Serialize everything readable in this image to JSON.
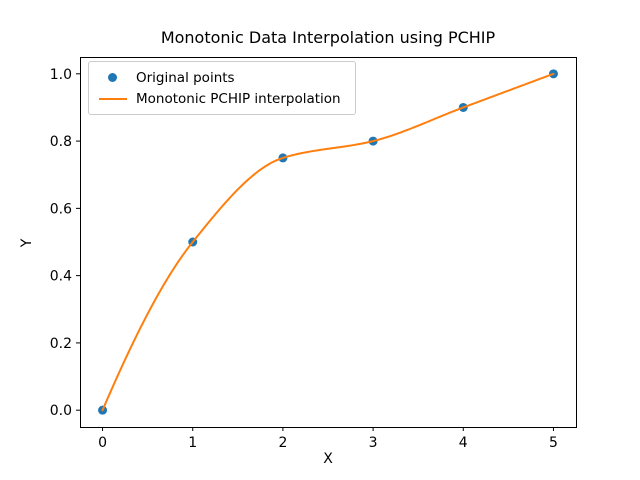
{
  "chart_data": {
    "type": "line",
    "title": "Monotonic Data Interpolation using PCHIP",
    "xlabel": "X",
    "ylabel": "Y",
    "xlim": [
      -0.25,
      5.25
    ],
    "ylim": [
      -0.05,
      1.05
    ],
    "xticks": [
      0,
      1,
      2,
      3,
      4,
      5
    ],
    "xtick_labels": [
      "0",
      "1",
      "2",
      "3",
      "4",
      "5"
    ],
    "yticks": [
      0.0,
      0.2,
      0.4,
      0.6,
      0.8,
      1.0
    ],
    "ytick_labels": [
      "0.0",
      "0.2",
      "0.4",
      "0.6",
      "0.8",
      "1.0"
    ],
    "grid": false,
    "legend_position": "upper-left",
    "axes_color": "#000000",
    "background_color": "#ffffff",
    "series": [
      {
        "name": "Original points",
        "type": "scatter",
        "marker": "circle",
        "color": "#1f77b4",
        "x": [
          0,
          1,
          2,
          3,
          4,
          5
        ],
        "y": [
          0.0,
          0.5,
          0.75,
          0.8,
          0.9,
          1.0
        ]
      },
      {
        "name": "Monotonic PCHIP interpolation",
        "type": "line",
        "interpolation": "pchip",
        "color": "#ff7f0e",
        "x": [
          0,
          1,
          2,
          3,
          4,
          5
        ],
        "y": [
          0.0,
          0.5,
          0.75,
          0.8,
          0.9,
          1.0
        ]
      }
    ]
  }
}
